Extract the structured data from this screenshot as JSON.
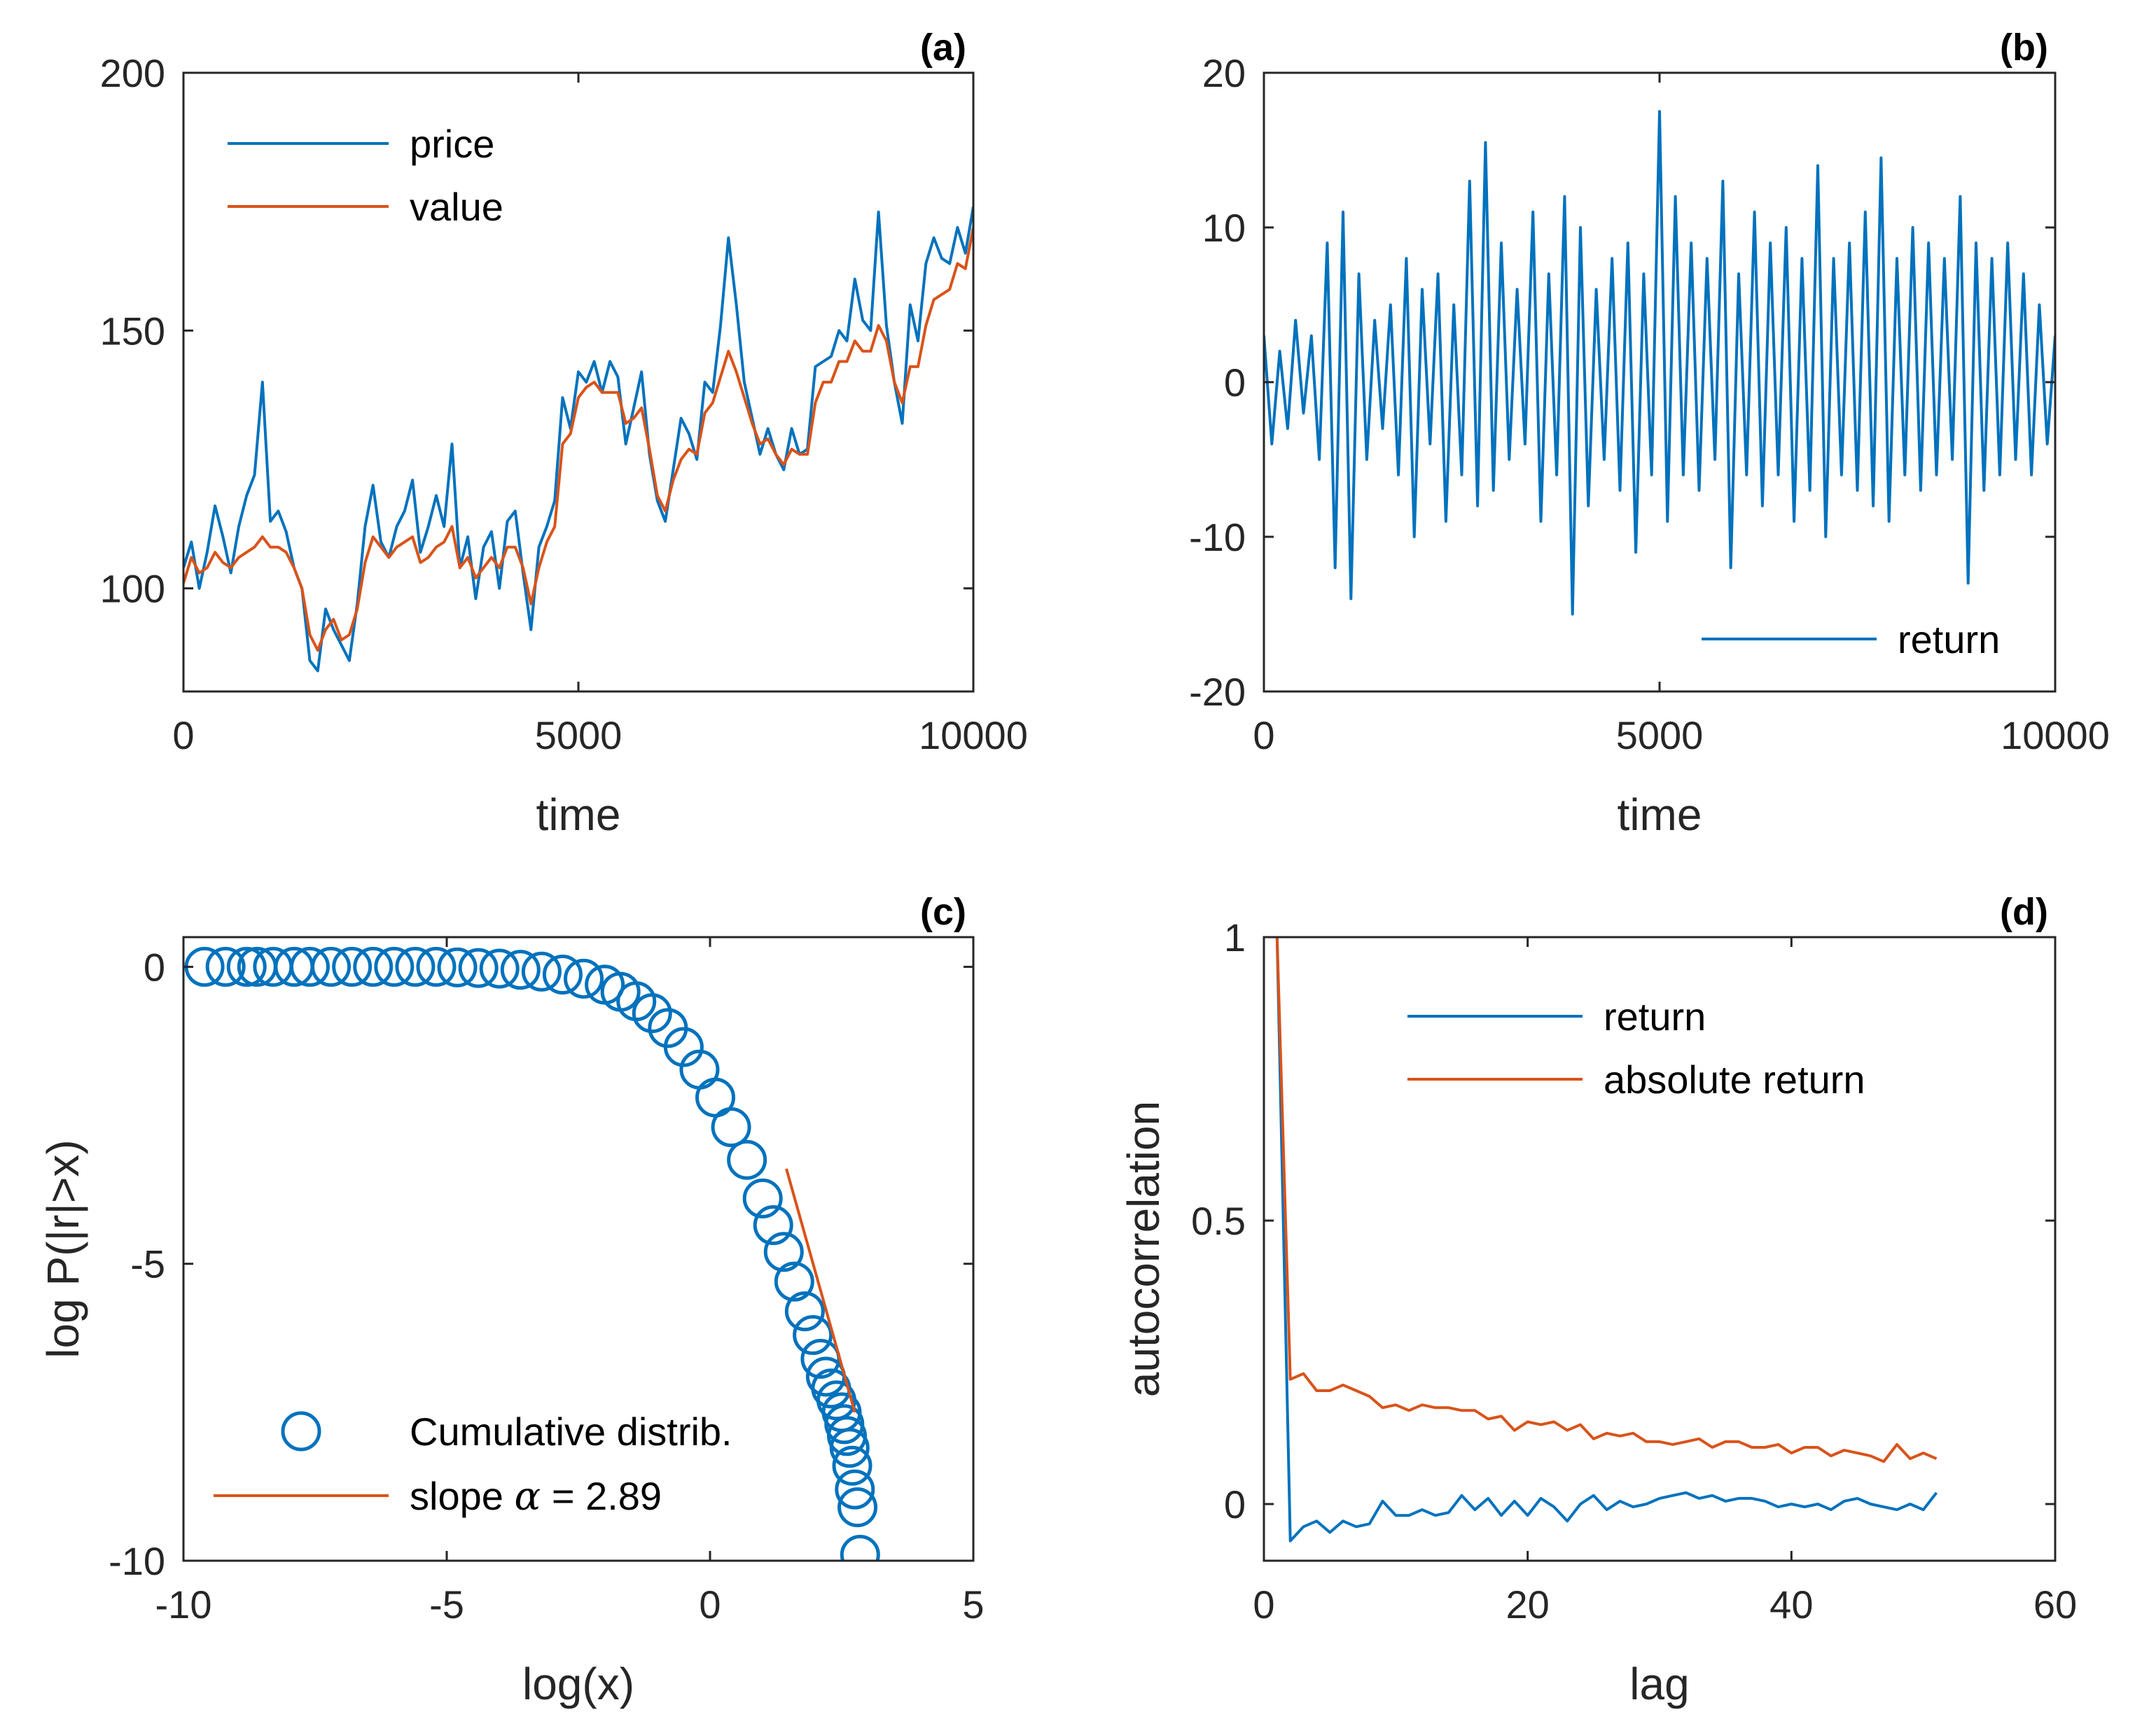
{
  "colors": {
    "blue": "#0072BD",
    "orange": "#D95319",
    "axis": "#262626"
  },
  "chart_data": [
    {
      "id": "a",
      "type": "line",
      "panel_label": "(a)",
      "xlabel": "time",
      "ylabel": "",
      "xlim": [
        0,
        10000
      ],
      "ylim": [
        80,
        200
      ],
      "xticks": [
        0,
        5000,
        10000
      ],
      "yticks": [
        100,
        150,
        200
      ],
      "xtick_labels": [
        "0",
        "5000",
        "10000"
      ],
      "ytick_labels": [
        "100",
        "150",
        "200"
      ],
      "legend_position": "top-left",
      "series": [
        {
          "name": "price",
          "color": "#0072BD",
          "x": [
            0,
            100,
            200,
            300,
            400,
            500,
            600,
            700,
            800,
            900,
            1000,
            1100,
            1200,
            1300,
            1400,
            1500,
            1600,
            1700,
            1800,
            1900,
            2000,
            2100,
            2200,
            2300,
            2400,
            2500,
            2600,
            2700,
            2800,
            2900,
            3000,
            3100,
            3200,
            3300,
            3400,
            3500,
            3600,
            3700,
            3800,
            3900,
            4000,
            4100,
            4200,
            4300,
            4400,
            4500,
            4600,
            4700,
            4800,
            4900,
            5000,
            5100,
            5200,
            5300,
            5400,
            5500,
            5600,
            5700,
            5800,
            5900,
            6000,
            6100,
            6200,
            6300,
            6400,
            6500,
            6600,
            6700,
            6800,
            6900,
            7000,
            7100,
            7200,
            7300,
            7400,
            7500,
            7600,
            7700,
            7800,
            7900,
            8000,
            8100,
            8200,
            8300,
            8400,
            8500,
            8600,
            8700,
            8800,
            8900,
            9000,
            9100,
            9200,
            9300,
            9400,
            9500,
            9600,
            9700,
            9800,
            9900,
            10000
          ],
          "values": [
            104,
            109,
            100,
            107,
            116,
            110,
            103,
            112,
            118,
            122,
            140,
            113,
            115,
            111,
            104,
            100,
            86,
            84,
            96,
            92,
            89,
            86,
            97,
            112,
            120,
            109,
            106,
            112,
            115,
            121,
            107,
            112,
            118,
            112,
            128,
            104,
            110,
            98,
            108,
            111,
            100,
            113,
            115,
            103,
            92,
            108,
            112,
            117,
            137,
            131,
            142,
            140,
            144,
            138,
            144,
            141,
            128,
            135,
            142,
            126,
            117,
            113,
            123,
            133,
            130,
            125,
            140,
            138,
            151,
            168,
            155,
            140,
            133,
            126,
            131,
            126,
            123,
            131,
            126,
            127,
            143,
            144,
            145,
            150,
            148,
            160,
            152,
            150,
            173,
            151,
            140,
            132,
            155,
            148,
            163,
            168,
            164,
            163,
            170,
            165,
            174
          ]
        },
        {
          "name": "value",
          "color": "#D95319",
          "x": [
            0,
            100,
            200,
            300,
            400,
            500,
            600,
            700,
            800,
            900,
            1000,
            1100,
            1200,
            1300,
            1400,
            1500,
            1600,
            1700,
            1800,
            1900,
            2000,
            2100,
            2200,
            2300,
            2400,
            2500,
            2600,
            2700,
            2800,
            2900,
            3000,
            3100,
            3200,
            3300,
            3400,
            3500,
            3600,
            3700,
            3800,
            3900,
            4000,
            4100,
            4200,
            4300,
            4400,
            4500,
            4600,
            4700,
            4800,
            4900,
            5000,
            5100,
            5200,
            5300,
            5400,
            5500,
            5600,
            5700,
            5800,
            5900,
            6000,
            6100,
            6200,
            6300,
            6400,
            6500,
            6600,
            6700,
            6800,
            6900,
            7000,
            7100,
            7200,
            7300,
            7400,
            7500,
            7600,
            7700,
            7800,
            7900,
            8000,
            8100,
            8200,
            8300,
            8400,
            8500,
            8600,
            8700,
            8800,
            8900,
            9000,
            9100,
            9200,
            9300,
            9400,
            9500,
            9600,
            9700,
            9800,
            9900,
            10000
          ],
          "values": [
            101,
            106,
            103,
            104,
            107,
            105,
            104,
            106,
            107,
            108,
            110,
            108,
            108,
            107,
            104,
            100,
            91,
            88,
            92,
            94,
            90,
            91,
            96,
            105,
            110,
            108,
            106,
            108,
            109,
            110,
            105,
            106,
            108,
            109,
            112,
            104,
            106,
            102,
            104,
            106,
            104,
            108,
            108,
            104,
            97,
            104,
            109,
            112,
            128,
            130,
            137,
            139,
            140,
            138,
            138,
            138,
            132,
            133,
            135,
            127,
            118,
            115,
            121,
            125,
            127,
            126,
            134,
            136,
            141,
            146,
            142,
            137,
            132,
            128,
            129,
            126,
            124,
            127,
            126,
            126,
            136,
            140,
            140,
            144,
            144,
            148,
            146,
            146,
            151,
            148,
            140,
            136,
            143,
            143,
            151,
            156,
            157,
            158,
            163,
            162,
            170
          ]
        }
      ]
    },
    {
      "id": "b",
      "type": "line",
      "panel_label": "(b)",
      "xlabel": "time",
      "ylabel": "",
      "xlim": [
        0,
        10000
      ],
      "ylim": [
        -20,
        20
      ],
      "xticks": [
        0,
        5000,
        10000
      ],
      "yticks": [
        -20,
        -10,
        0,
        10,
        20
      ],
      "xtick_labels": [
        "0",
        "5000",
        "10000"
      ],
      "ytick_labels": [
        "-20",
        "-10",
        "0",
        "10",
        "20"
      ],
      "legend_position": "bottom-right",
      "series": [
        {
          "name": "return",
          "color": "#0072BD",
          "x": [
            0,
            100,
            200,
            300,
            400,
            500,
            600,
            700,
            800,
            900,
            1000,
            1100,
            1200,
            1300,
            1400,
            1500,
            1600,
            1700,
            1800,
            1900,
            2000,
            2100,
            2200,
            2300,
            2400,
            2500,
            2600,
            2700,
            2800,
            2900,
            3000,
            3100,
            3200,
            3300,
            3400,
            3500,
            3600,
            3700,
            3800,
            3900,
            4000,
            4100,
            4200,
            4300,
            4400,
            4500,
            4600,
            4700,
            4800,
            4900,
            5000,
            5100,
            5200,
            5300,
            5400,
            5500,
            5600,
            5700,
            5800,
            5900,
            6000,
            6100,
            6200,
            6300,
            6400,
            6500,
            6600,
            6700,
            6800,
            6900,
            7000,
            7100,
            7200,
            7300,
            7400,
            7500,
            7600,
            7700,
            7800,
            7900,
            8000,
            8100,
            8200,
            8300,
            8400,
            8500,
            8600,
            8700,
            8800,
            8900,
            9000,
            9100,
            9200,
            9300,
            9400,
            9500,
            9600,
            9700,
            9800,
            9900,
            10000
          ],
          "values": [
            3,
            -4,
            2,
            -3,
            4,
            -2,
            3,
            -5,
            9,
            -12,
            11,
            -14,
            7,
            -5,
            4,
            -3,
            5,
            -6,
            8,
            -10,
            6,
            -4,
            7,
            -9,
            5,
            -6,
            13,
            -8,
            15.5,
            -7,
            9,
            -5,
            6,
            -4,
            11,
            -9,
            7,
            -6,
            12,
            -15,
            10,
            -8,
            6,
            -5,
            8,
            -7,
            9,
            -11,
            7,
            -6,
            17.5,
            -9,
            12,
            -6,
            9,
            -7,
            8,
            -5,
            13,
            -12,
            7,
            -6,
            11,
            -8,
            9,
            -6,
            10,
            -9,
            8,
            -7,
            14,
            -10,
            8,
            -6,
            9,
            -7,
            11,
            -8,
            14.5,
            -9,
            8,
            -6,
            10,
            -7,
            9,
            -6,
            8,
            -5,
            12,
            -13,
            9,
            -7,
            8,
            -6,
            9,
            -5,
            7,
            -6,
            5,
            -4,
            3
          ]
        }
      ]
    },
    {
      "id": "c",
      "type": "scatter",
      "panel_label": "(c)",
      "xlabel": "log(x)",
      "ylabel": "log P(|r|>x)",
      "xlim": [
        -10,
        5
      ],
      "ylim": [
        -10,
        0.5
      ],
      "xticks": [
        -10,
        -5,
        0,
        5
      ],
      "yticks": [
        -10,
        -5,
        0
      ],
      "xtick_labels": [
        "-10",
        "-5",
        "0",
        "5"
      ],
      "ytick_labels": [
        "-10",
        "-5",
        "0"
      ],
      "legend_position": "bottom-left",
      "series": [
        {
          "name": "Cumulative distrib.",
          "kind": "markers",
          "color": "#0072BD",
          "x": [
            -9.6,
            -9.2,
            -8.8,
            -8.6,
            -8.3,
            -7.9,
            -7.6,
            -7.2,
            -6.8,
            -6.4,
            -6.0,
            -5.6,
            -5.2,
            -4.8,
            -4.4,
            -4.0,
            -3.6,
            -3.2,
            -2.8,
            -2.4,
            -2.0,
            -1.7,
            -1.4,
            -1.1,
            -0.8,
            -0.5,
            -0.2,
            0.1,
            0.4,
            0.7,
            1.0,
            1.2,
            1.4,
            1.6,
            1.8,
            1.95,
            2.1,
            2.2,
            2.3,
            2.4,
            2.5,
            2.55,
            2.6,
            2.65,
            2.7,
            2.75,
            2.8,
            2.85
          ],
          "values": [
            0,
            0,
            0,
            0,
            0,
            0,
            0,
            0,
            0,
            0,
            0,
            0,
            0,
            -0.01,
            -0.02,
            -0.03,
            -0.05,
            -0.08,
            -0.13,
            -0.2,
            -0.3,
            -0.42,
            -0.58,
            -0.78,
            -1.03,
            -1.35,
            -1.73,
            -2.2,
            -2.7,
            -3.25,
            -3.9,
            -4.35,
            -4.8,
            -5.3,
            -5.8,
            -6.2,
            -6.6,
            -6.9,
            -7.1,
            -7.3,
            -7.5,
            -7.7,
            -7.9,
            -8.1,
            -8.4,
            -8.8,
            -9.1,
            -9.9
          ]
        },
        {
          "name": "slope α = 2.89",
          "kind": "line",
          "color": "#D95319",
          "x": [
            1.45,
            2.75
          ],
          "values": [
            -3.4,
            -7.5
          ]
        }
      ]
    },
    {
      "id": "d",
      "type": "line",
      "panel_label": "(d)",
      "xlabel": "lag",
      "ylabel": "autocorrelation",
      "xlim": [
        0,
        60
      ],
      "ylim": [
        -0.1,
        1
      ],
      "xticks": [
        0,
        20,
        40,
        60
      ],
      "yticks": [
        0,
        0.5,
        1
      ],
      "xtick_labels": [
        "0",
        "20",
        "40",
        "60"
      ],
      "ytick_labels": [
        "0",
        "0.5",
        "1"
      ],
      "legend_position": "top-right",
      "series": [
        {
          "name": "return",
          "color": "#0072BD",
          "x": [
            1,
            2,
            3,
            4,
            5,
            6,
            7,
            8,
            9,
            10,
            11,
            12,
            13,
            14,
            15,
            16,
            17,
            18,
            19,
            20,
            21,
            22,
            23,
            24,
            25,
            26,
            27,
            28,
            29,
            30,
            31,
            32,
            33,
            34,
            35,
            36,
            37,
            38,
            39,
            40,
            41,
            42,
            43,
            44,
            45,
            46,
            47,
            48,
            49,
            50,
            51
          ],
          "values": [
            1,
            -0.065,
            -0.04,
            -0.03,
            -0.05,
            -0.03,
            -0.04,
            -0.035,
            0.005,
            -0.02,
            -0.02,
            -0.01,
            -0.02,
            -0.015,
            0.015,
            -0.01,
            0.01,
            -0.02,
            0.005,
            -0.02,
            0.01,
            -0.005,
            -0.03,
            0,
            0.015,
            -0.01,
            0.005,
            -0.005,
            0,
            0.01,
            0.015,
            0.02,
            0.01,
            0.015,
            0.005,
            0.01,
            0.01,
            0.005,
            -0.005,
            0,
            -0.005,
            0,
            -0.01,
            0.005,
            0.01,
            0,
            -0.005,
            -0.01,
            0,
            -0.01,
            0.02
          ]
        },
        {
          "name": "absolute return",
          "color": "#D95319",
          "x": [
            1,
            2,
            3,
            4,
            5,
            6,
            7,
            8,
            9,
            10,
            11,
            12,
            13,
            14,
            15,
            16,
            17,
            18,
            19,
            20,
            21,
            22,
            23,
            24,
            25,
            26,
            27,
            28,
            29,
            30,
            31,
            32,
            33,
            34,
            35,
            36,
            37,
            38,
            39,
            40,
            41,
            42,
            43,
            44,
            45,
            46,
            47,
            48,
            49,
            50,
            51
          ],
          "values": [
            1,
            0.22,
            0.23,
            0.2,
            0.2,
            0.21,
            0.2,
            0.19,
            0.17,
            0.175,
            0.165,
            0.175,
            0.17,
            0.17,
            0.165,
            0.165,
            0.15,
            0.155,
            0.13,
            0.145,
            0.14,
            0.145,
            0.13,
            0.14,
            0.115,
            0.125,
            0.12,
            0.125,
            0.11,
            0.11,
            0.105,
            0.11,
            0.115,
            0.1,
            0.11,
            0.11,
            0.1,
            0.1,
            0.105,
            0.09,
            0.1,
            0.1,
            0.085,
            0.095,
            0.09,
            0.085,
            0.075,
            0.105,
            0.08,
            0.09,
            0.08
          ]
        }
      ]
    }
  ]
}
